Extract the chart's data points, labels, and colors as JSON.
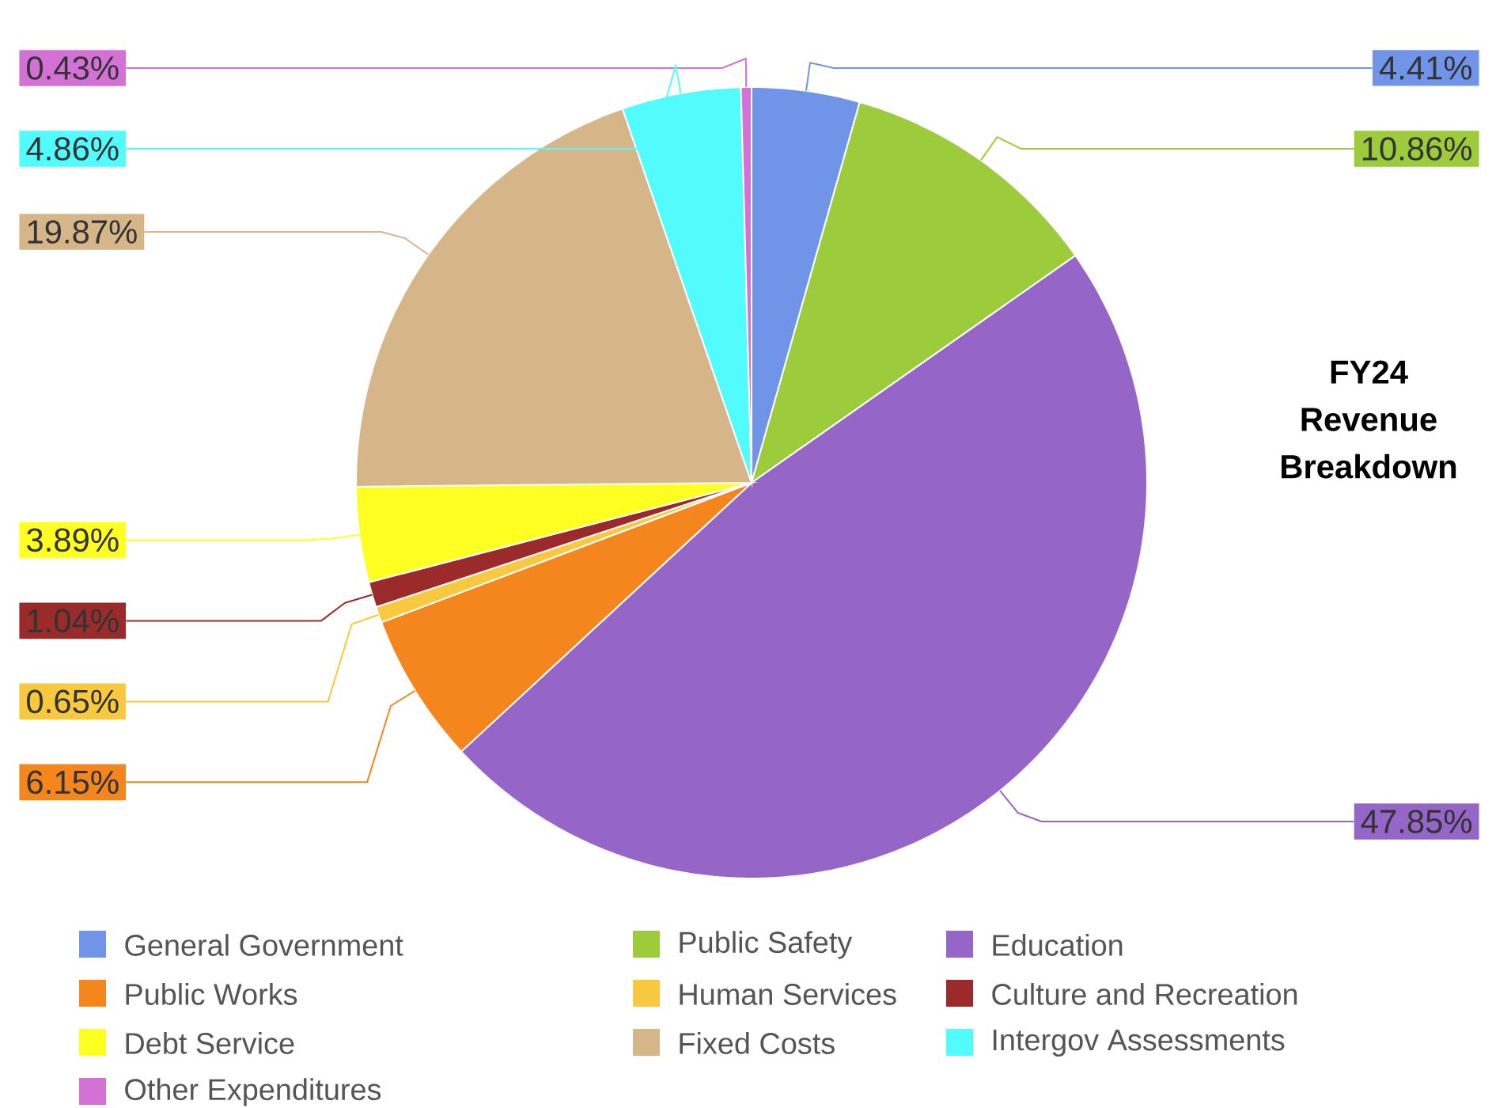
{
  "chart_data": {
    "type": "pie",
    "title": "FY24 Revenue Breakdown",
    "categories": [
      "General Government",
      "Public Safety",
      "Education",
      "Public Works",
      "Human Services",
      "Culture and Recreation",
      "Debt Service",
      "Fixed Costs",
      "Intergov Assessments",
      "Other Expenditures"
    ],
    "values": [
      4.41,
      10.86,
      47.85,
      6.15,
      0.65,
      1.04,
      3.89,
      19.87,
      4.86,
      0.43
    ],
    "value_labels": [
      "4.41%",
      "10.86%",
      "47.85%",
      "6.15%",
      "0.65%",
      "1.04%",
      "3.89%",
      "19.87%",
      "4.86%",
      "0.43%"
    ],
    "colors": [
      "#6f94e8",
      "#9ccc3c",
      "#9566c8",
      "#f4861d",
      "#f8c93e",
      "#9b2a2a",
      "#ffff21",
      "#d6b589",
      "#52fbfd",
      "#d371d6"
    ],
    "legend": "bottom"
  }
}
